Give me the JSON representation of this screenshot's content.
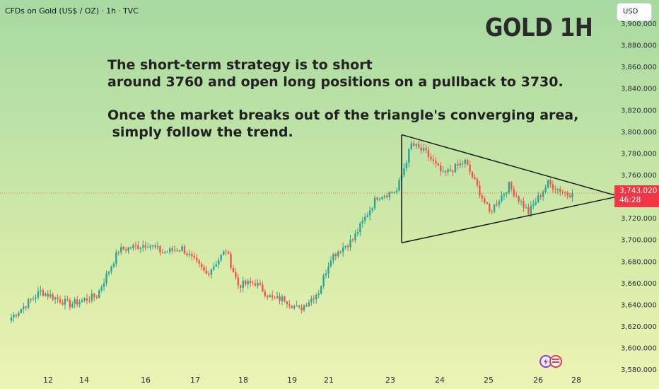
{
  "header": {
    "symbol_title": "CFDs on Gold (US$ / OZ) · 1h · TVC",
    "big_title": "GOLD 1H",
    "currency_button": "USD"
  },
  "annotation": {
    "paragraph1_line1": "The short-term strategy is to short",
    "paragraph1_line2": "around 3760 and open long positions on a pullback to 3730.",
    "paragraph2_line1": "Once the market breaks out of the triangle's converging area,",
    "paragraph2_line2": " simply follow the trend."
  },
  "price_label": {
    "price": "3,743.020",
    "countdown": "46:28",
    "color": "#f23645"
  },
  "colors": {
    "up": "#26a69a",
    "down": "#ef5350",
    "triangle": "#1a1a1a",
    "price_line": "#f23645"
  },
  "icons": [
    "lightning-icon",
    "us-flag-icon"
  ],
  "chart_data": {
    "type": "candlestick",
    "title": "CFDs on Gold (US$ / OZ) · 1h · TVC",
    "x_tick_labels": [
      "12",
      "14",
      "16",
      "17",
      "18",
      "19",
      "21",
      "23",
      "24",
      "25",
      "26",
      "28"
    ],
    "y_tick_labels": [
      "3,580.000",
      "3,600.000",
      "3,620.000",
      "3,640.000",
      "3,660.000",
      "3,680.000",
      "3,700.000",
      "3,720.000",
      "3,740.000",
      "3,760.000",
      "3,780.000",
      "3,800.000",
      "3,820.000",
      "3,840.000",
      "3,860.000",
      "3,880.000",
      "3,900.000"
    ],
    "ylim": [
      3572,
      3916
    ],
    "last_price": 3743.02,
    "close_path_keypoints": [
      {
        "bar": 0,
        "price": 3628
      },
      {
        "bar": 12,
        "price": 3652
      },
      {
        "bar": 24,
        "price": 3640
      },
      {
        "bar": 35,
        "price": 3648
      },
      {
        "bar": 44,
        "price": 3690
      },
      {
        "bar": 56,
        "price": 3696
      },
      {
        "bar": 62,
        "price": 3688
      },
      {
        "bar": 70,
        "price": 3692
      },
      {
        "bar": 80,
        "price": 3668
      },
      {
        "bar": 88,
        "price": 3690
      },
      {
        "bar": 93,
        "price": 3658
      },
      {
        "bar": 100,
        "price": 3660
      },
      {
        "bar": 107,
        "price": 3645
      },
      {
        "bar": 112,
        "price": 3645
      },
      {
        "bar": 118,
        "price": 3635
      },
      {
        "bar": 126,
        "price": 3652
      },
      {
        "bar": 131,
        "price": 3684
      },
      {
        "bar": 140,
        "price": 3700
      },
      {
        "bar": 150,
        "price": 3740
      },
      {
        "bar": 158,
        "price": 3745
      },
      {
        "bar": 164,
        "price": 3788
      },
      {
        "bar": 170,
        "price": 3780
      },
      {
        "bar": 177,
        "price": 3760
      },
      {
        "bar": 186,
        "price": 3772
      },
      {
        "bar": 196,
        "price": 3725
      },
      {
        "bar": 204,
        "price": 3750
      },
      {
        "bar": 212,
        "price": 3725
      },
      {
        "bar": 220,
        "price": 3752
      },
      {
        "bar": 228,
        "price": 3742
      },
      {
        "bar": 230,
        "price": 3743
      }
    ],
    "triangle": {
      "upper": [
        {
          "bar": 160,
          "price": 3797
        },
        {
          "bar": 249,
          "price": 3740
        }
      ],
      "lower": [
        {
          "bar": 160,
          "price": 3697
        },
        {
          "bar": 249,
          "price": 3740
        }
      ],
      "left_edge": [
        {
          "bar": 160,
          "price": 3797
        },
        {
          "bar": 160,
          "price": 3697
        }
      ]
    }
  }
}
